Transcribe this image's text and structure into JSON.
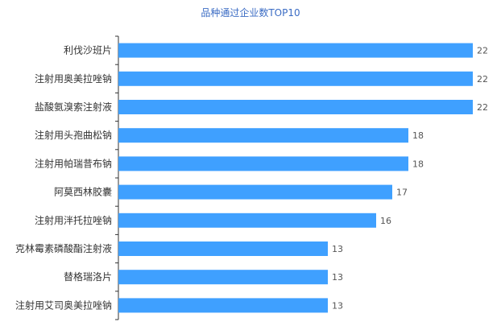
{
  "chart_data": {
    "type": "bar",
    "orientation": "horizontal",
    "title": "品种通过企业数TOP10",
    "xlabel": "",
    "ylabel": "",
    "xlim": [
      0,
      22
    ],
    "grid": false,
    "categories": [
      "利伐沙班片",
      "注射用奥美拉唑钠",
      "盐酸氨溴索注射液",
      "注射用头孢曲松钠",
      "注射用帕瑞昔布钠",
      "阿莫西林胶囊",
      "注射用泮托拉唑钠",
      "克林霉素磷酸酯注射液",
      "替格瑞洛片",
      "注射用艾司奥美拉唑钠"
    ],
    "values": [
      22,
      22,
      22,
      18,
      18,
      17,
      16,
      13,
      13,
      13
    ],
    "bar_color": "#3fa0ff"
  }
}
